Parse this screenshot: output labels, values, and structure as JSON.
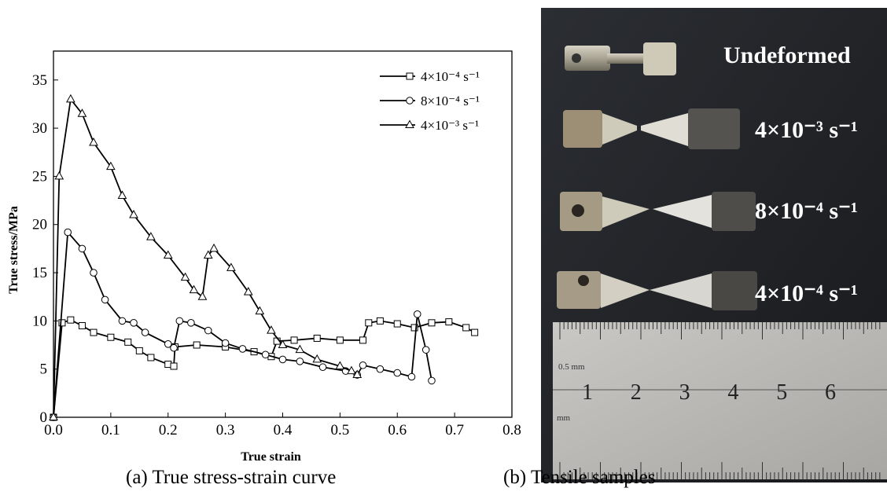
{
  "chart_data": {
    "type": "line",
    "x_label": "True strain",
    "y_label": "True stress/MPa",
    "xlim": [
      0,
      0.8
    ],
    "xticks": [
      {
        "value": 0,
        "label": "0.0"
      },
      0.1,
      0.2,
      0.3,
      0.4,
      0.5,
      0.6,
      0.7,
      0.8
    ],
    "ylim": [
      0,
      38
    ],
    "yticks": [
      0,
      5,
      10,
      15,
      20,
      25,
      30,
      35
    ],
    "legend": "top-right",
    "series": [
      {
        "name": "4×10⁻⁴ s⁻¹",
        "color": "#000000",
        "marker": "square",
        "x": [
          0,
          0.015,
          0.03,
          0.05,
          0.07,
          0.1,
          0.13,
          0.15,
          0.17,
          0.2,
          0.21,
          0.212,
          0.25,
          0.3,
          0.35,
          0.38,
          0.39,
          0.42,
          0.46,
          0.5,
          0.54,
          0.55,
          0.57,
          0.6,
          0.63,
          0.66,
          0.69,
          0.72,
          0.735
        ],
        "values": [
          0,
          9.8,
          10.1,
          9.5,
          8.8,
          8.3,
          7.8,
          6.9,
          6.2,
          5.5,
          5.3,
          7.3,
          7.5,
          7.3,
          6.8,
          6.3,
          7.9,
          8.0,
          8.2,
          8.0,
          8.0,
          9.8,
          10.0,
          9.7,
          9.3,
          9.8,
          9.9,
          9.3,
          8.8
        ]
      },
      {
        "name": "8×10⁻⁴ s⁻¹",
        "color": "#000000",
        "marker": "circle",
        "x": [
          0,
          0.025,
          0.05,
          0.07,
          0.09,
          0.12,
          0.14,
          0.16,
          0.2,
          0.21,
          0.22,
          0.24,
          0.27,
          0.3,
          0.33,
          0.37,
          0.4,
          0.43,
          0.47,
          0.51,
          0.53,
          0.54,
          0.57,
          0.6,
          0.625,
          0.635,
          0.65,
          0.66
        ],
        "values": [
          0,
          19.2,
          17.5,
          15,
          12.2,
          10,
          9.8,
          8.8,
          7.6,
          7.2,
          10,
          9.8,
          9,
          7.7,
          7.1,
          6.5,
          6,
          5.8,
          5.2,
          4.8,
          4.4,
          5.4,
          5,
          4.6,
          4.2,
          10.7,
          7,
          3.8
        ]
      },
      {
        "name": "4×10⁻³ s⁻¹",
        "color": "#000000",
        "marker": "triangle",
        "x": [
          0,
          0.01,
          0.03,
          0.05,
          0.07,
          0.1,
          0.12,
          0.14,
          0.17,
          0.2,
          0.23,
          0.245,
          0.26,
          0.27,
          0.28,
          0.31,
          0.34,
          0.36,
          0.38,
          0.4,
          0.43,
          0.46,
          0.5,
          0.52,
          0.53
        ],
        "values": [
          0,
          25,
          33,
          31.5,
          28.5,
          26,
          23,
          21,
          18.7,
          16.8,
          14.5,
          13.2,
          12.5,
          16.8,
          17.5,
          15.5,
          13,
          11,
          9,
          7.5,
          7,
          6,
          5.3,
          4.8,
          4.4
        ]
      }
    ]
  },
  "captions": [
    "(a) True stress-strain curve",
    "(b) Tensile samples"
  ],
  "photo": {
    "labels": [
      "Undeformed",
      "4×10⁻³ s⁻¹",
      "8×10⁻⁴ s⁻¹",
      "4×10⁻⁴ s⁻¹"
    ],
    "ruler_numbers": [
      "1",
      "2",
      "3",
      "4",
      "5",
      "6"
    ],
    "ruler_labels": [
      "0.5 mm",
      "mm"
    ]
  }
}
